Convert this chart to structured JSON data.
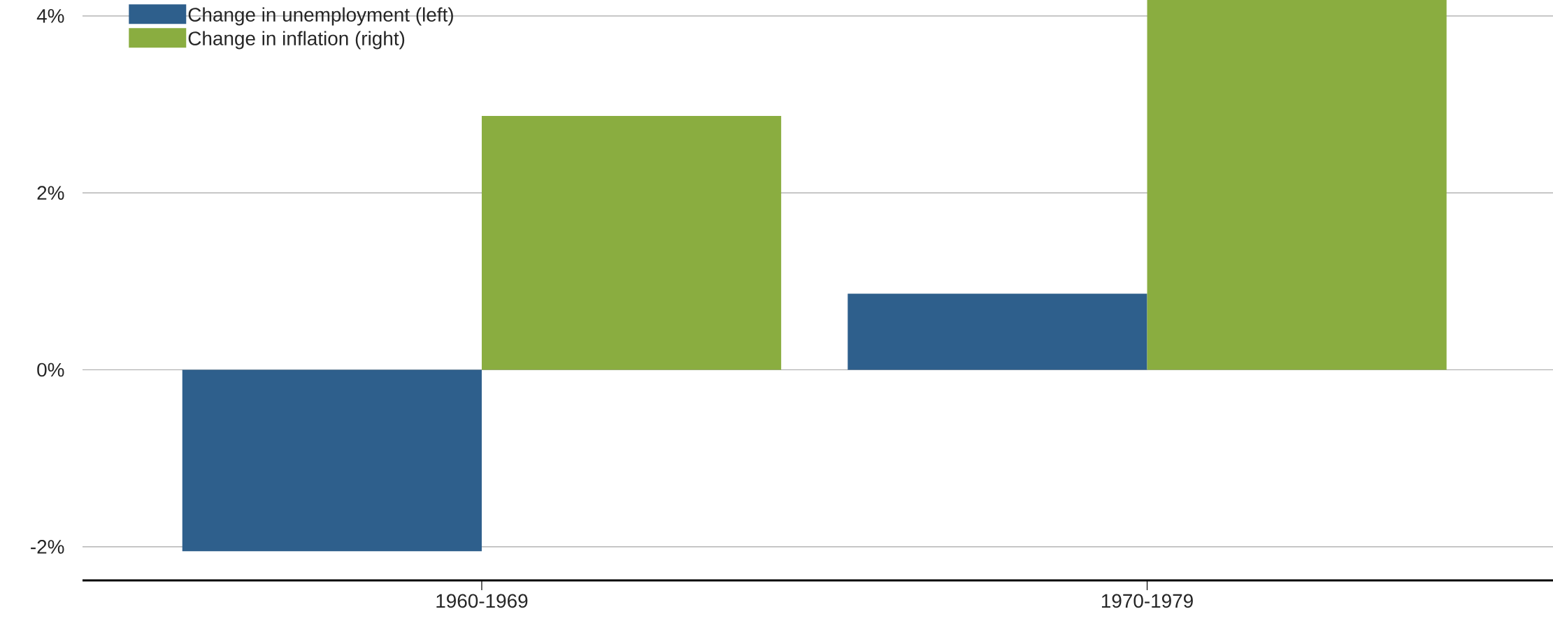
{
  "chart_data": {
    "type": "bar",
    "categories": [
      "1960-1969",
      "1970-1979"
    ],
    "series": [
      {
        "name": "Change in unemployment (left)",
        "color": "#2e5f8c",
        "values": [
          -2.05,
          0.86
        ]
      },
      {
        "name": "Change in inflation (right)",
        "color": "#8aad40",
        "values": [
          2.87,
          4.18
        ]
      }
    ],
    "ylim": [
      -2.38,
      4.18
    ],
    "yticks": [
      {
        "value": -2,
        "label": "-2%"
      },
      {
        "value": 0,
        "label": "0%"
      },
      {
        "value": 2,
        "label": "2%"
      },
      {
        "value": 4,
        "label": "4%"
      }
    ],
    "grid": "y",
    "legend": "top left"
  }
}
